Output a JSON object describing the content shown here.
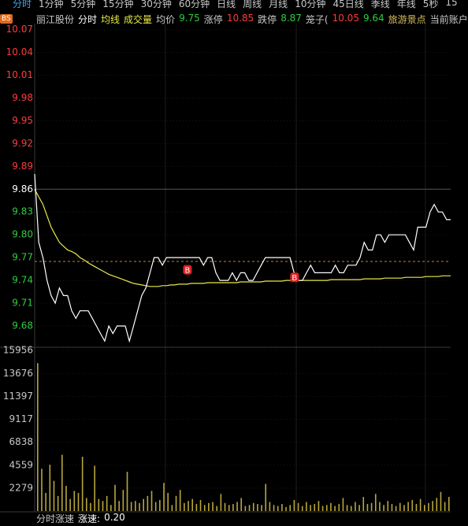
{
  "tabs": [
    "分时",
    "1分钟",
    "5分钟",
    "15分钟",
    "30分钟",
    "60分钟",
    "日线",
    "周线",
    "月线",
    "10分钟",
    "45日线",
    "季线",
    "年线",
    "5秒",
    "15"
  ],
  "active_tab": 0,
  "badge": "BS",
  "info": [
    {
      "text": "丽江股份",
      "color": "#c8c8c8"
    },
    {
      "text": "分时",
      "color": "#ffffff"
    },
    {
      "text": "均线",
      "color": "#e8e84a"
    },
    {
      "text": "成交量",
      "color": "#e8e84a"
    },
    {
      "text": "均价",
      "color": "#c8c8c8"
    },
    {
      "text": "9.75",
      "color": "#2ecc40"
    },
    {
      "text": "涨停",
      "color": "#c8c8c8"
    },
    {
      "text": "10.85",
      "color": "#ff3b3b"
    },
    {
      "text": "跌停",
      "color": "#c8c8c8"
    },
    {
      "text": "8.87",
      "color": "#2ecc40"
    },
    {
      "text": "笼子(",
      "color": "#c8c8c8"
    },
    {
      "text": "10.05",
      "color": "#ff3b3b"
    },
    {
      "text": "9.64",
      "color": "#2ecc40"
    },
    {
      "text": "旅游景点",
      "color": "#d8c060"
    },
    {
      "text": "当前账户",
      "color": "#c8c8c8"
    }
  ],
  "footer": [
    {
      "text": "分时涨速",
      "color": "#c8c8c8"
    },
    {
      "text": "涨速:",
      "color": "#ffffff"
    },
    {
      "text": "0.20",
      "color": "#ffffff"
    }
  ],
  "chart_data": [
    {
      "type": "line",
      "ylim": [
        9.653,
        10.078
      ],
      "yticks": [
        10.07,
        10.04,
        10.01,
        9.98,
        9.95,
        9.92,
        9.89,
        9.86,
        9.83,
        {
          "value": 9.8,
          "label": "9.80"
        },
        9.77,
        9.74,
        9.71,
        9.68
      ],
      "prev_close": 9.86,
      "dashed_level": 9.765,
      "series": [
        {
          "color": "#ffffff",
          "values": [
            9.88,
            9.79,
            9.77,
            9.74,
            9.72,
            9.71,
            9.73,
            9.72,
            9.72,
            9.7,
            9.69,
            9.7,
            9.7,
            9.7,
            9.69,
            9.68,
            9.67,
            9.66,
            9.68,
            9.67,
            9.68,
            9.68,
            9.68,
            9.66,
            9.68,
            9.7,
            9.72,
            9.73,
            9.75,
            9.77,
            9.77,
            9.76,
            9.77,
            9.77,
            9.77,
            9.77,
            9.77,
            9.77,
            9.77,
            9.77,
            9.77,
            9.76,
            9.77,
            9.77,
            9.75,
            9.74,
            9.74,
            9.74,
            9.75,
            9.74,
            9.75,
            9.75,
            9.74,
            9.74,
            9.75,
            9.76,
            9.77,
            9.77,
            9.77,
            9.77,
            9.77,
            9.77,
            9.77,
            9.75,
            9.74,
            9.74,
            9.75,
            9.76,
            9.75,
            9.75,
            9.75,
            9.75,
            9.75,
            9.76,
            9.75,
            9.75,
            9.76,
            9.76,
            9.76,
            9.77,
            9.79,
            9.78,
            9.78,
            9.8,
            9.8,
            9.79,
            9.8,
            9.8,
            9.8,
            9.8,
            9.8,
            9.79,
            9.78,
            9.81,
            9.81,
            9.81,
            9.83,
            9.84,
            9.83,
            9.83,
            9.82,
            9.82
          ]
        },
        {
          "color": "#e8e84a",
          "values": [
            9.86,
            9.85,
            9.84,
            9.825,
            9.81,
            9.8,
            9.79,
            9.785,
            9.78,
            9.778,
            9.775,
            9.77,
            9.767,
            9.763,
            9.76,
            9.757,
            9.754,
            9.751,
            9.748,
            9.746,
            9.744,
            9.742,
            9.74,
            9.738,
            9.736,
            9.735,
            9.734,
            9.733,
            9.732,
            9.732,
            9.732,
            9.733,
            9.733,
            9.734,
            9.734,
            9.735,
            9.735,
            9.735,
            9.736,
            9.736,
            9.736,
            9.736,
            9.737,
            9.737,
            9.737,
            9.737,
            9.737,
            9.737,
            9.737,
            9.737,
            9.738,
            9.738,
            9.738,
            9.738,
            9.738,
            9.738,
            9.739,
            9.739,
            9.739,
            9.739,
            9.739,
            9.74,
            9.74,
            9.74,
            9.74,
            9.74,
            9.74,
            9.74,
            9.74,
            9.74,
            9.74,
            9.74,
            9.741,
            9.741,
            9.741,
            9.741,
            9.741,
            9.741,
            9.741,
            9.741,
            9.742,
            9.742,
            9.742,
            9.742,
            9.742,
            9.743,
            9.743,
            9.743,
            9.743,
            9.743,
            9.744,
            9.744,
            9.744,
            9.744,
            9.744,
            9.745,
            9.745,
            9.745,
            9.745,
            9.746,
            9.746,
            9.746
          ]
        }
      ],
      "annotations": [
        {
          "text": "B",
          "index": 37,
          "value": 9.754
        },
        {
          "text": "B",
          "index": 63,
          "value": 9.744
        }
      ]
    },
    {
      "type": "bar",
      "ylim": [
        0,
        16280
      ],
      "yticks": [
        15956,
        13676,
        11397,
        9117,
        6838,
        4559,
        2279
      ],
      "color": "#b8a63c",
      "values": [
        14700,
        4200,
        1800,
        4600,
        3000,
        1500,
        5600,
        2500,
        1200,
        2000,
        1800,
        5400,
        1300,
        800,
        4500,
        1200,
        1000,
        1500,
        600,
        2600,
        1000,
        2100,
        3900,
        900,
        1000,
        800,
        1200,
        1500,
        2000,
        900,
        1100,
        2800,
        1800,
        600,
        1500,
        2100,
        800,
        1000,
        1200,
        700,
        1100,
        600,
        800,
        900,
        500,
        1700,
        800,
        600,
        700,
        900,
        1300,
        500,
        600,
        800,
        700,
        600,
        2700,
        900,
        600,
        500,
        700,
        400,
        600,
        1100,
        800,
        500,
        900,
        600,
        700,
        1000,
        500,
        600,
        800,
        500,
        700,
        1300,
        600,
        500,
        900,
        600,
        1400,
        700,
        800,
        1700,
        900,
        600,
        1000,
        700,
        500,
        800,
        600,
        900,
        1100,
        700,
        1200,
        600,
        800,
        1000,
        1300,
        1900,
        900,
        1400
      ]
    }
  ]
}
